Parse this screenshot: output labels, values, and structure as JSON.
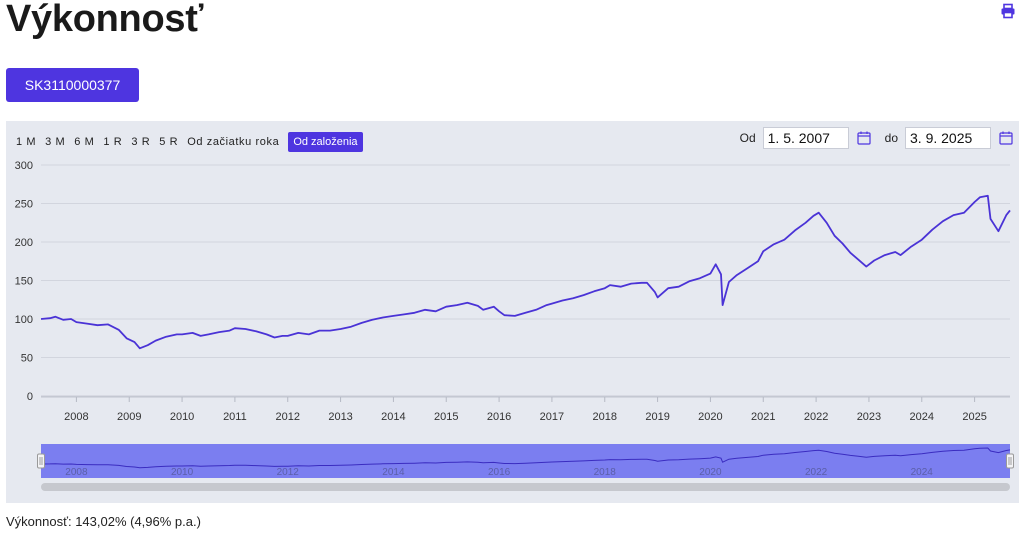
{
  "page": {
    "title": "Výkonnosť",
    "print_icon": "printer-icon",
    "isin_label": "SK3110000377"
  },
  "range_buttons": [
    {
      "label": "1 M",
      "active": false
    },
    {
      "label": "3 M",
      "active": false
    },
    {
      "label": "6 M",
      "active": false
    },
    {
      "label": "1 R",
      "active": false
    },
    {
      "label": "3 R",
      "active": false
    },
    {
      "label": "5 R",
      "active": false
    },
    {
      "label": "Od začiatku roka",
      "active": false
    },
    {
      "label": "Od založenia",
      "active": true
    }
  ],
  "date_range": {
    "from_label": "Od",
    "from_value": "1. 5. 2007",
    "to_label": "do",
    "to_value": "3. 9. 2025",
    "calendar_icon": "calendar-icon"
  },
  "summary": "Výkonnosť: 143,02% (4,96% p.a.)",
  "colors": {
    "accent": "#4e35e0",
    "line": "#4a33d6",
    "panel_bg": "#e6e9f0",
    "navigator_fill": "#7b7ef0"
  },
  "chart_data": {
    "type": "line",
    "title": "",
    "xlabel": "",
    "ylabel": "",
    "ylim": [
      0,
      300
    ],
    "yticks": [
      0,
      50,
      100,
      150,
      200,
      250,
      300
    ],
    "xlim": [
      2007.33,
      2025.67
    ],
    "xticks": [
      "2008",
      "2009",
      "2010",
      "2011",
      "2012",
      "2013",
      "2014",
      "2015",
      "2016",
      "2017",
      "2018",
      "2019",
      "2020",
      "2021",
      "2022",
      "2023",
      "2024",
      "2025"
    ],
    "navigator_ticks": [
      "2008",
      "2010",
      "2012",
      "2014",
      "2016",
      "2018",
      "2020",
      "2022",
      "2024"
    ],
    "grid": true,
    "legend": "none",
    "series": [
      {
        "x": [
          2007.33,
          2007.5,
          2007.6,
          2007.75,
          2007.9,
          2008.0,
          2008.2,
          2008.4,
          2008.6,
          2008.8,
          2008.95,
          2009.1,
          2009.2,
          2009.35,
          2009.5,
          2009.7,
          2009.9,
          2010.0,
          2010.2,
          2010.35,
          2010.5,
          2010.7,
          2010.9,
          2011.0,
          2011.2,
          2011.4,
          2011.6,
          2011.75,
          2011.9,
          2012.0,
          2012.2,
          2012.4,
          2012.6,
          2012.8,
          2013.0,
          2013.2,
          2013.4,
          2013.6,
          2013.8,
          2014.0,
          2014.2,
          2014.4,
          2014.6,
          2014.8,
          2015.0,
          2015.2,
          2015.4,
          2015.6,
          2015.7,
          2015.9,
          2016.0,
          2016.1,
          2016.3,
          2016.5,
          2016.7,
          2016.9,
          2017.0,
          2017.2,
          2017.4,
          2017.6,
          2017.8,
          2018.0,
          2018.1,
          2018.3,
          2018.5,
          2018.7,
          2018.8,
          2018.95,
          2019.0,
          2019.2,
          2019.4,
          2019.6,
          2019.8,
          2020.0,
          2020.1,
          2020.2,
          2020.23,
          2020.35,
          2020.5,
          2020.7,
          2020.9,
          2021.0,
          2021.2,
          2021.4,
          2021.6,
          2021.8,
          2021.95,
          2022.05,
          2022.2,
          2022.35,
          2022.5,
          2022.65,
          2022.8,
          2022.95,
          2023.1,
          2023.3,
          2023.5,
          2023.6,
          2023.8,
          2024.0,
          2024.2,
          2024.4,
          2024.6,
          2024.8,
          2025.0,
          2025.1,
          2025.25,
          2025.3,
          2025.45,
          2025.6,
          2025.67
        ],
        "y": [
          100,
          101,
          103,
          99,
          100,
          96,
          94,
          92,
          93,
          86,
          75,
          70,
          62,
          66,
          72,
          77,
          80,
          80,
          82,
          78,
          80,
          83,
          85,
          88,
          87,
          84,
          80,
          76,
          78,
          78,
          82,
          80,
          85,
          85,
          87,
          90,
          95,
          99,
          102,
          104,
          106,
          108,
          112,
          110,
          116,
          118,
          121,
          117,
          112,
          116,
          110,
          105,
          104,
          108,
          112,
          118,
          120,
          124,
          127,
          131,
          136,
          140,
          144,
          142,
          146,
          147,
          147,
          135,
          128,
          140,
          142,
          149,
          153,
          159,
          171,
          158,
          118,
          148,
          157,
          166,
          175,
          188,
          197,
          203,
          215,
          225,
          234,
          238,
          225,
          208,
          198,
          186,
          177,
          168,
          176,
          183,
          187,
          183,
          194,
          203,
          216,
          227,
          235,
          238,
          252,
          258,
          260,
          230,
          214,
          235,
          241
        ]
      }
    ]
  }
}
